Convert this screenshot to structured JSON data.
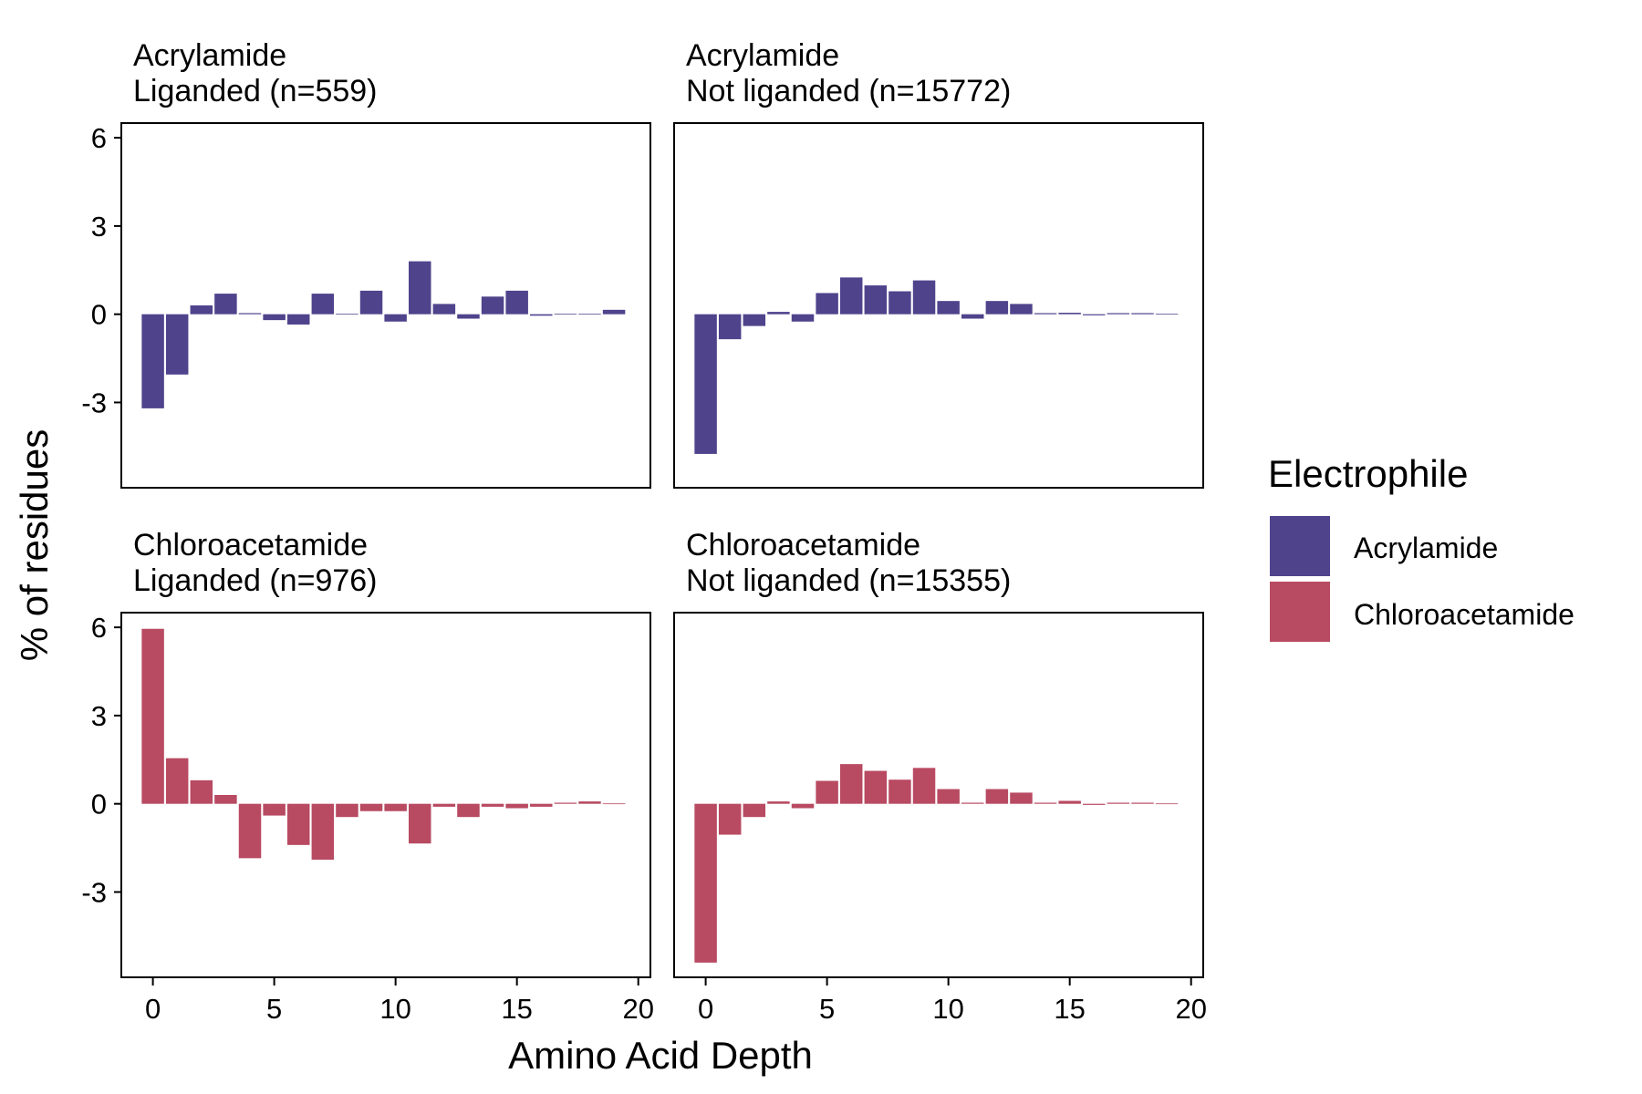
{
  "chart_data": {
    "type": "bar",
    "xlabel": "Amino Acid Depth",
    "ylabel": "% of residues",
    "x_ticks": [
      0,
      5,
      10,
      15,
      20
    ],
    "y_ticks": [
      -3,
      0,
      3,
      6
    ],
    "y_tick_labels": [
      "-3",
      "0",
      "3",
      "6"
    ],
    "xlim": [
      -1.3,
      20.5
    ],
    "ylim": [
      -5.9,
      6.5
    ],
    "legend": {
      "title": "Electrophile",
      "placement": "right",
      "items": [
        {
          "label": "Acrylamide",
          "color": "#4f438c"
        },
        {
          "label": "Chloroacetamide",
          "color": "#b84a62"
        }
      ]
    },
    "panels": [
      {
        "title_line1": "Acrylamide",
        "title_line2": "Liganded (n=559)",
        "series": "Acrylamide",
        "color": "#4f438c",
        "x": [
          0,
          1,
          2,
          3,
          4,
          5,
          6,
          7,
          8,
          9,
          10,
          11,
          12,
          13,
          14,
          15,
          16,
          17,
          18,
          19
        ],
        "values": [
          -3.2,
          -2.05,
          0.3,
          0.7,
          0.03,
          -0.2,
          -0.35,
          0.7,
          0.0,
          0.8,
          -0.25,
          1.8,
          0.35,
          -0.15,
          0.6,
          0.8,
          -0.05,
          0.0,
          0.0,
          0.15
        ]
      },
      {
        "title_line1": "Acrylamide",
        "title_line2": "Not liganded (n=15772)",
        "series": "Acrylamide",
        "color": "#4f438c",
        "x": [
          0,
          1,
          2,
          3,
          4,
          5,
          6,
          7,
          8,
          9,
          10,
          11,
          12,
          13,
          14,
          15,
          16,
          17,
          18,
          19
        ],
        "values": [
          -4.75,
          -0.85,
          -0.4,
          0.08,
          -0.25,
          0.72,
          1.25,
          0.98,
          0.78,
          1.15,
          0.45,
          -0.15,
          0.45,
          0.35,
          0.03,
          0.05,
          -0.03,
          0.02,
          0.01,
          0.0
        ]
      },
      {
        "title_line1": "Chloroacetamide",
        "title_line2": "Liganded (n=976)",
        "series": "Chloroacetamide",
        "color": "#b84a62",
        "x": [
          0,
          1,
          2,
          3,
          4,
          5,
          6,
          7,
          8,
          9,
          10,
          11,
          12,
          13,
          14,
          15,
          16,
          17,
          18,
          19
        ],
        "values": [
          5.95,
          1.55,
          0.8,
          0.3,
          -1.85,
          -0.4,
          -1.4,
          -1.9,
          -0.45,
          -0.25,
          -0.25,
          -1.35,
          -0.1,
          -0.45,
          -0.1,
          -0.15,
          -0.1,
          0.03,
          0.08,
          0.0
        ]
      },
      {
        "title_line1": "Chloroacetamide",
        "title_line2": "Not liganded (n=15355)",
        "series": "Chloroacetamide",
        "color": "#b84a62",
        "x": [
          0,
          1,
          2,
          3,
          4,
          5,
          6,
          7,
          8,
          9,
          10,
          11,
          12,
          13,
          14,
          15,
          16,
          17,
          18,
          19
        ],
        "values": [
          -5.4,
          -1.05,
          -0.45,
          0.08,
          -0.15,
          0.78,
          1.35,
          1.12,
          0.82,
          1.22,
          0.5,
          0.02,
          0.5,
          0.38,
          0.03,
          0.1,
          -0.02,
          0.02,
          0.01,
          0.0
        ]
      }
    ]
  }
}
